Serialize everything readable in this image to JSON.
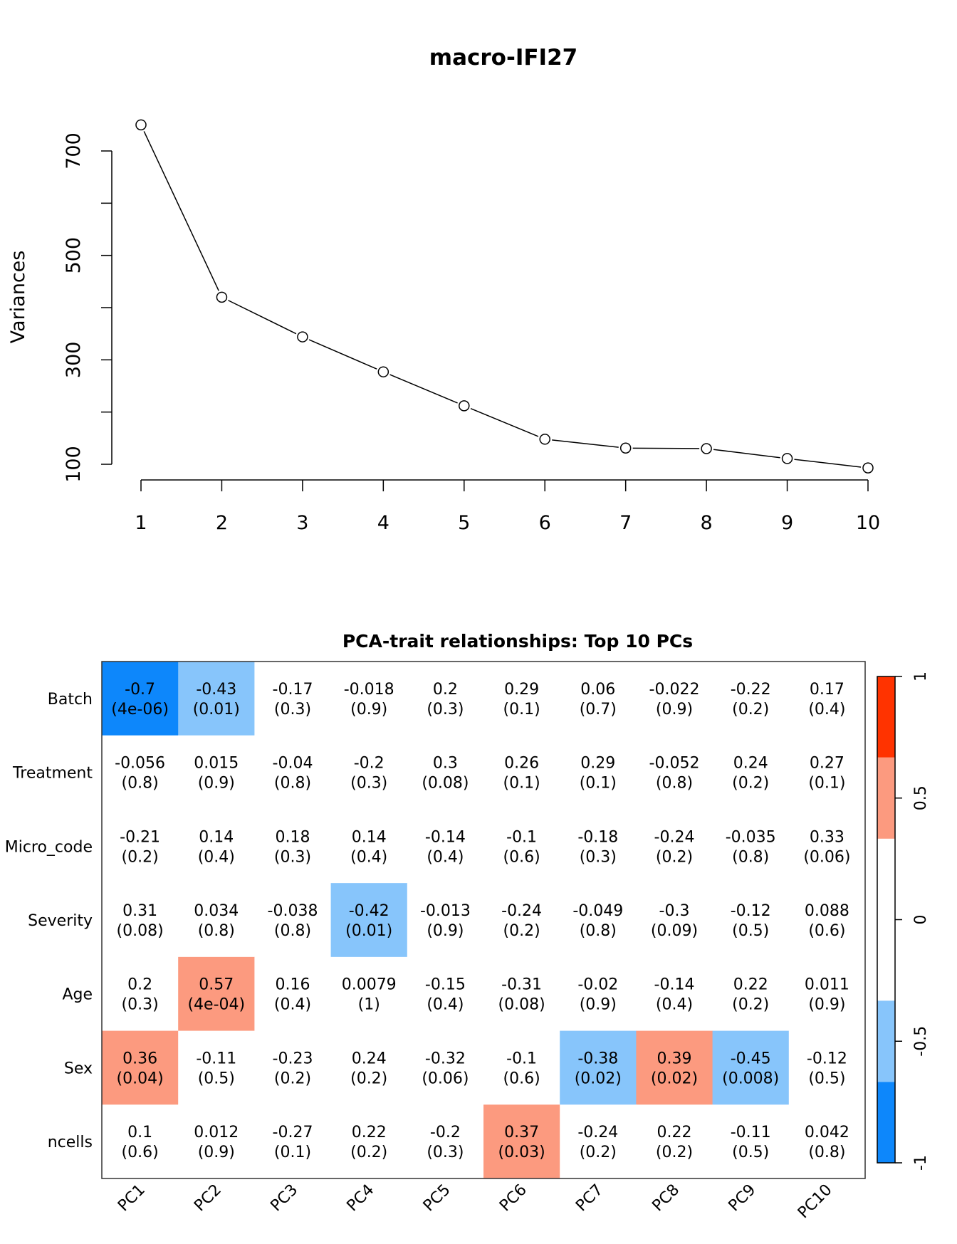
{
  "chart_data": [
    {
      "type": "line",
      "title": "macro-IFI27",
      "xlabel": "",
      "ylabel": "Variances",
      "x": [
        1,
        2,
        3,
        4,
        5,
        6,
        7,
        8,
        9,
        10
      ],
      "values": [
        750,
        420,
        344,
        277,
        212,
        148,
        131,
        130,
        111,
        93
      ],
      "xticks": [
        "1",
        "2",
        "3",
        "4",
        "5",
        "6",
        "7",
        "8",
        "9",
        "10"
      ],
      "yticks": [
        100,
        200,
        300,
        400,
        500,
        600,
        700
      ],
      "ytick_labels": [
        "100",
        "300",
        "500",
        "700"
      ],
      "ylim": [
        100,
        700
      ],
      "grid": false,
      "marker": "open-circle"
    },
    {
      "type": "heatmap",
      "title": "PCA-trait relationships: Top 10 PCs",
      "columns": [
        "PC1",
        "PC2",
        "PC3",
        "PC4",
        "PC5",
        "PC6",
        "PC7",
        "PC8",
        "PC9",
        "PC10"
      ],
      "rows": [
        "Batch",
        "Treatment",
        "Micro_code",
        "Severity",
        "Age",
        "Sex",
        "ncells"
      ],
      "values": [
        [
          "-0.7",
          "-0.43",
          "-0.17",
          "-0.018",
          "0.2",
          "0.29",
          "0.06",
          "-0.022",
          "-0.22",
          "0.17"
        ],
        [
          "-0.056",
          "0.015",
          "-0.04",
          "-0.2",
          "0.3",
          "0.26",
          "0.29",
          "-0.052",
          "0.24",
          "0.27"
        ],
        [
          "-0.21",
          "0.14",
          "0.18",
          "0.14",
          "-0.14",
          "-0.1",
          "-0.18",
          "-0.24",
          "-0.035",
          "0.33"
        ],
        [
          "0.31",
          "0.034",
          "-0.038",
          "-0.42",
          "-0.013",
          "-0.24",
          "-0.049",
          "-0.3",
          "-0.12",
          "0.088"
        ],
        [
          "0.2",
          "0.57",
          "0.16",
          "0.0079",
          "-0.15",
          "-0.31",
          "-0.02",
          "-0.14",
          "0.22",
          "0.011"
        ],
        [
          "0.36",
          "-0.11",
          "-0.23",
          "0.24",
          "-0.32",
          "-0.1",
          "-0.38",
          "0.39",
          "-0.45",
          "-0.12"
        ],
        [
          "0.1",
          "0.012",
          "-0.27",
          "0.22",
          "-0.2",
          "0.37",
          "-0.24",
          "0.22",
          "-0.11",
          "0.042"
        ]
      ],
      "pvalues": [
        [
          "(4e-06)",
          "(0.01)",
          "(0.3)",
          "(0.9)",
          "(0.3)",
          "(0.1)",
          "(0.7)",
          "(0.9)",
          "(0.2)",
          "(0.4)"
        ],
        [
          "(0.8)",
          "(0.9)",
          "(0.8)",
          "(0.3)",
          "(0.08)",
          "(0.1)",
          "(0.1)",
          "(0.8)",
          "(0.2)",
          "(0.1)"
        ],
        [
          "(0.2)",
          "(0.4)",
          "(0.3)",
          "(0.4)",
          "(0.4)",
          "(0.6)",
          "(0.3)",
          "(0.2)",
          "(0.8)",
          "(0.06)"
        ],
        [
          "(0.08)",
          "(0.8)",
          "(0.8)",
          "(0.01)",
          "(0.9)",
          "(0.2)",
          "(0.8)",
          "(0.09)",
          "(0.5)",
          "(0.6)"
        ],
        [
          "(0.3)",
          "(4e-04)",
          "(0.4)",
          "(1)",
          "(0.4)",
          "(0.08)",
          "(0.9)",
          "(0.4)",
          "(0.2)",
          "(0.9)"
        ],
        [
          "(0.04)",
          "(0.5)",
          "(0.2)",
          "(0.2)",
          "(0.06)",
          "(0.6)",
          "(0.02)",
          "(0.02)",
          "(0.008)",
          "(0.5)"
        ],
        [
          "(0.6)",
          "(0.9)",
          "(0.1)",
          "(0.2)",
          "(0.3)",
          "(0.03)",
          "(0.2)",
          "(0.2)",
          "(0.5)",
          "(0.8)"
        ]
      ],
      "colorbar": {
        "range": [
          -1,
          1
        ],
        "tick_labels": [
          "-1",
          "-0.5",
          "0",
          "0.5",
          "1"
        ],
        "ticks": [
          -1,
          -0.5,
          0,
          0.5,
          1
        ],
        "bins": [
          {
            "from": -1,
            "to": -0.667,
            "color": "#0D87FB"
          },
          {
            "from": -0.667,
            "to": -0.333,
            "color": "#87C5FB"
          },
          {
            "from": -0.333,
            "to": 0.333,
            "color": "#FFFFFF"
          },
          {
            "from": 0.333,
            "to": 0.667,
            "color": "#FC9A7F"
          },
          {
            "from": 0.667,
            "to": 1,
            "color": "#FF3300"
          }
        ]
      }
    }
  ]
}
